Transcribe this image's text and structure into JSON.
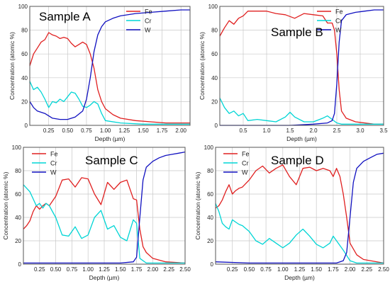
{
  "chart_data": [
    {
      "type": "line",
      "title": "Sample A",
      "xlabel": "Depth (µm)",
      "ylabel": "Concentration (atomic %)",
      "xlim": [
        0,
        2.12
      ],
      "ylim": [
        0,
        100
      ],
      "xticks": [
        "0.25",
        "0.50",
        "0.75",
        "1.00",
        "1.25",
        "1.50",
        "1.75",
        "2.00"
      ],
      "xtick_values": [
        0.25,
        0.5,
        0.75,
        1.0,
        1.25,
        1.5,
        1.75,
        2.0
      ],
      "yticks": [
        "0",
        "20",
        "40",
        "60",
        "80",
        "100"
      ],
      "grid": true,
      "legend_position": "top-right",
      "series": [
        {
          "name": "Fe",
          "color": "#e02020",
          "x": [
            0,
            0.05,
            0.1,
            0.15,
            0.2,
            0.25,
            0.3,
            0.35,
            0.4,
            0.45,
            0.5,
            0.55,
            0.6,
            0.65,
            0.7,
            0.75,
            0.8,
            0.85,
            0.9,
            0.95,
            1.0,
            1.1,
            1.2,
            1.4,
            1.6,
            1.8,
            2.0,
            2.12
          ],
          "y": [
            50,
            60,
            65,
            70,
            72,
            78,
            76,
            75,
            73,
            74,
            73,
            69,
            66,
            68,
            70,
            68,
            60,
            48,
            30,
            20,
            14,
            9,
            6,
            4,
            3,
            2,
            2,
            2
          ]
        },
        {
          "name": "Cr",
          "color": "#00d5d5",
          "x": [
            0,
            0.05,
            0.1,
            0.15,
            0.2,
            0.25,
            0.3,
            0.35,
            0.4,
            0.45,
            0.5,
            0.55,
            0.6,
            0.65,
            0.7,
            0.75,
            0.8,
            0.85,
            0.9,
            0.95,
            1.0,
            1.2,
            1.5,
            2.12
          ],
          "y": [
            37,
            30,
            32,
            28,
            22,
            15,
            20,
            19,
            22,
            20,
            24,
            28,
            27,
            22,
            16,
            15,
            17,
            20,
            18,
            10,
            4,
            2,
            1,
            1
          ]
        },
        {
          "name": "W",
          "color": "#1010c0",
          "x": [
            0,
            0.05,
            0.1,
            0.2,
            0.3,
            0.4,
            0.5,
            0.6,
            0.7,
            0.75,
            0.8,
            0.85,
            0.9,
            0.95,
            1.0,
            1.1,
            1.2,
            1.4,
            1.6,
            1.8,
            2.0,
            2.12
          ],
          "y": [
            20,
            15,
            12,
            10,
            6,
            5,
            5,
            7,
            12,
            22,
            40,
            62,
            76,
            83,
            87,
            90,
            92,
            94,
            95,
            96,
            97,
            97
          ]
        }
      ]
    },
    {
      "type": "line",
      "title": "Sample B",
      "xlabel": "Depth (µm)",
      "ylabel": "Concentration (atomic %)",
      "xlim": [
        0,
        3.5
      ],
      "ylim": [
        0,
        100
      ],
      "xticks": [
        "0.5",
        "1.0",
        "1.5",
        "2.0",
        "2.5",
        "3.0",
        "3.5"
      ],
      "xtick_values": [
        0.5,
        1.0,
        1.5,
        2.0,
        2.5,
        3.0,
        3.5
      ],
      "yticks": [
        "0",
        "20",
        "40",
        "60",
        "80",
        "100"
      ],
      "grid": true,
      "legend_position": "top-right",
      "series": [
        {
          "name": "Fe",
          "color": "#e02020",
          "x": [
            0,
            0.1,
            0.2,
            0.3,
            0.4,
            0.5,
            0.6,
            0.8,
            1.0,
            1.2,
            1.4,
            1.6,
            1.8,
            2.0,
            2.2,
            2.3,
            2.4,
            2.45,
            2.5,
            2.55,
            2.6,
            2.7,
            2.9,
            3.1,
            3.3,
            3.5
          ],
          "y": [
            75,
            82,
            88,
            85,
            90,
            92,
            96,
            96,
            96,
            94,
            93,
            90,
            94,
            93,
            92,
            86,
            86,
            80,
            60,
            30,
            12,
            6,
            3,
            2,
            1,
            1
          ]
        },
        {
          "name": "Cr",
          "color": "#00d5d5",
          "x": [
            0,
            0.1,
            0.2,
            0.3,
            0.4,
            0.5,
            0.6,
            0.8,
            1.0,
            1.2,
            1.4,
            1.5,
            1.6,
            1.8,
            2.0,
            2.2,
            2.3,
            2.4,
            2.5,
            2.6,
            2.8,
            3.0,
            3.5
          ],
          "y": [
            23,
            15,
            10,
            12,
            8,
            10,
            4,
            5,
            4,
            3,
            7,
            11,
            7,
            3,
            3,
            6,
            8,
            5,
            2,
            1,
            1,
            1,
            1
          ]
        },
        {
          "name": "W",
          "color": "#1010c0",
          "x": [
            0,
            0.5,
            1.0,
            1.5,
            2.0,
            2.3,
            2.4,
            2.45,
            2.5,
            2.55,
            2.6,
            2.7,
            2.9,
            3.1,
            3.3,
            3.5
          ],
          "y": [
            0,
            0,
            0,
            0,
            1,
            2,
            4,
            10,
            35,
            70,
            88,
            93,
            95,
            96,
            97,
            97
          ]
        }
      ]
    },
    {
      "type": "line",
      "title": "Sample C",
      "xlabel": "Depth (µm)",
      "ylabel": "Concentration (atomic %)",
      "xlim": [
        0,
        2.5
      ],
      "ylim": [
        0,
        100
      ],
      "xticks": [
        "0.25",
        "0.50",
        "0.75",
        "1.00",
        "1.25",
        "1.50",
        "1.75",
        "2.00",
        "2.25",
        "2.50"
      ],
      "xtick_values": [
        0.25,
        0.5,
        0.75,
        1.0,
        1.25,
        1.5,
        1.75,
        2.0,
        2.25,
        2.5
      ],
      "yticks": [
        "0",
        "20",
        "40",
        "60",
        "80",
        "100"
      ],
      "grid": true,
      "legend_position": "top-left",
      "series": [
        {
          "name": "Fe",
          "color": "#e02020",
          "x": [
            0,
            0.05,
            0.1,
            0.15,
            0.2,
            0.25,
            0.3,
            0.35,
            0.4,
            0.5,
            0.6,
            0.7,
            0.8,
            0.9,
            1.0,
            1.1,
            1.2,
            1.3,
            1.4,
            1.5,
            1.6,
            1.7,
            1.75,
            1.8,
            1.85,
            1.9,
            2.0,
            2.2,
            2.5
          ],
          "y": [
            30,
            33,
            37,
            45,
            50,
            47,
            50,
            52,
            50,
            58,
            72,
            73,
            66,
            74,
            73,
            60,
            51,
            70,
            64,
            70,
            72,
            56,
            55,
            30,
            15,
            10,
            5,
            2,
            1
          ]
        },
        {
          "name": "Cr",
          "color": "#00d5d5",
          "x": [
            0,
            0.05,
            0.1,
            0.15,
            0.2,
            0.25,
            0.3,
            0.35,
            0.4,
            0.5,
            0.6,
            0.7,
            0.8,
            0.9,
            1.0,
            1.1,
            1.2,
            1.3,
            1.4,
            1.5,
            1.6,
            1.7,
            1.75,
            1.8,
            1.9,
            2.0,
            2.5
          ],
          "y": [
            68,
            65,
            62,
            56,
            50,
            52,
            48,
            52,
            50,
            40,
            25,
            24,
            32,
            22,
            25,
            40,
            46,
            30,
            33,
            23,
            20,
            38,
            35,
            5,
            1,
            1,
            1
          ]
        },
        {
          "name": "W",
          "color": "#1010c0",
          "x": [
            0,
            0.5,
            1.0,
            1.5,
            1.7,
            1.75,
            1.8,
            1.85,
            1.9,
            2.0,
            2.1,
            2.2,
            2.3,
            2.4,
            2.5
          ],
          "y": [
            1,
            1,
            1,
            1,
            2,
            6,
            40,
            72,
            83,
            88,
            91,
            93,
            94,
            95,
            96
          ]
        }
      ]
    },
    {
      "type": "line",
      "title": "Sample D",
      "xlabel": "Depth (µm)",
      "ylabel": "Concentration (atomic %)",
      "xlim": [
        0,
        2.5
      ],
      "ylim": [
        0,
        100
      ],
      "xticks": [
        "0.25",
        "0.50",
        "0.75",
        "1.00",
        "1.25",
        "1.50",
        "1.75",
        "2.00",
        "2.25",
        "2.50"
      ],
      "xtick_values": [
        0.25,
        0.5,
        0.75,
        1.0,
        1.25,
        1.5,
        1.75,
        2.0,
        2.25,
        2.5
      ],
      "yticks": [
        "0",
        "20",
        "40",
        "60",
        "80",
        "100"
      ],
      "grid": true,
      "legend_position": "top-left",
      "series": [
        {
          "name": "Fe",
          "color": "#e02020",
          "x": [
            0,
            0.05,
            0.1,
            0.15,
            0.2,
            0.25,
            0.3,
            0.35,
            0.4,
            0.5,
            0.6,
            0.7,
            0.8,
            0.9,
            1.0,
            1.1,
            1.2,
            1.3,
            1.4,
            1.5,
            1.6,
            1.7,
            1.75,
            1.8,
            1.85,
            1.9,
            1.95,
            2.0,
            2.1,
            2.2,
            2.5
          ],
          "y": [
            48,
            50,
            55,
            62,
            68,
            60,
            63,
            65,
            66,
            72,
            80,
            84,
            78,
            82,
            85,
            75,
            68,
            82,
            83,
            80,
            82,
            80,
            75,
            82,
            75,
            60,
            40,
            18,
            8,
            4,
            1
          ]
        },
        {
          "name": "Cr",
          "color": "#00d5d5",
          "x": [
            0,
            0.05,
            0.1,
            0.15,
            0.2,
            0.25,
            0.3,
            0.35,
            0.4,
            0.5,
            0.6,
            0.7,
            0.8,
            0.9,
            1.0,
            1.1,
            1.2,
            1.3,
            1.4,
            1.5,
            1.6,
            1.7,
            1.75,
            1.8,
            1.9,
            2.0,
            2.1,
            2.5
          ],
          "y": [
            52,
            45,
            35,
            32,
            30,
            38,
            36,
            34,
            33,
            28,
            20,
            17,
            22,
            18,
            14,
            18,
            25,
            30,
            24,
            17,
            14,
            18,
            24,
            20,
            12,
            3,
            1,
            1
          ]
        },
        {
          "name": "W",
          "color": "#1010c0",
          "x": [
            0,
            0.5,
            1.0,
            1.5,
            1.8,
            1.9,
            1.95,
            2.0,
            2.05,
            2.1,
            2.2,
            2.3,
            2.4,
            2.5
          ],
          "y": [
            2,
            1,
            1,
            1,
            1,
            3,
            10,
            40,
            70,
            82,
            88,
            91,
            94,
            95
          ]
        }
      ]
    }
  ]
}
